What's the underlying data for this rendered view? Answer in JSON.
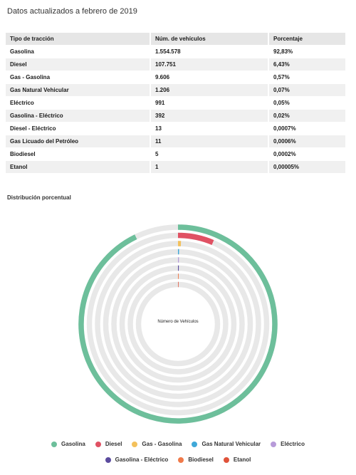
{
  "heading": "Datos actualizados a febrero de 2019",
  "table": {
    "headers": [
      "Tipo de tracción",
      "Núm. de vehículos",
      "Porcentaje"
    ],
    "rows": [
      [
        "Gasolina",
        "1.554.578",
        "92,83%"
      ],
      [
        "Diesel",
        "107.751",
        "6,43%"
      ],
      [
        "Gas - Gasolina",
        "9.606",
        "0,57%"
      ],
      [
        "Gas Natural Vehicular",
        "1.206",
        "0,07%"
      ],
      [
        "Eléctrico",
        "991",
        "0,05%"
      ],
      [
        "Gasolina - Eléctrico",
        "392",
        "0,02%"
      ],
      [
        "Diesel - Eléctrico",
        "13",
        "0,0007%"
      ],
      [
        "Gas Licuado del Petróleo",
        "11",
        "0,0006%"
      ],
      [
        "Biodiesel",
        "5",
        "0,0002%"
      ],
      [
        "Etanol",
        "1",
        "0,00005%"
      ]
    ]
  },
  "chart_subtitle": "Distribución porcentual",
  "chart_data": {
    "type": "radial-bar",
    "title": "Distribución porcentual",
    "center_label": "Número de Vehículos",
    "scale_max_percent": 100,
    "series": [
      {
        "name": "Gasolina",
        "value": 1554578,
        "percent": 92.83,
        "color": "#6dbf9b"
      },
      {
        "name": "Diesel",
        "value": 107751,
        "percent": 6.43,
        "color": "#e05163"
      },
      {
        "name": "Gas - Gasolina",
        "value": 9606,
        "percent": 0.57,
        "color": "#f3c15c"
      },
      {
        "name": "Gas Natural Vehicular",
        "value": 1206,
        "percent": 0.07,
        "color": "#3fa8d8"
      },
      {
        "name": "Eléctrico",
        "value": 991,
        "percent": 0.05,
        "color": "#b79bd9"
      },
      {
        "name": "Gasolina - Eléctrico",
        "value": 392,
        "percent": 0.02,
        "color": "#5b4b9e"
      },
      {
        "name": "Biodiesel",
        "value": 5,
        "percent": 0.0002,
        "color": "#f07a4a"
      },
      {
        "name": "Etanol",
        "value": 1,
        "percent": 5e-05,
        "color": "#e0533a"
      }
    ],
    "track_color": "#e8e8e8"
  },
  "legend_row1": [
    {
      "label": "Gasolina",
      "color": "#6dbf9b"
    },
    {
      "label": "Diesel",
      "color": "#e05163"
    },
    {
      "label": "Gas - Gasolina",
      "color": "#f3c15c"
    },
    {
      "label": "Gas Natural Vehicular",
      "color": "#3fa8d8"
    },
    {
      "label": "Eléctrico",
      "color": "#b79bd9"
    }
  ],
  "legend_row2": [
    {
      "label": "Gasolina - Eléctrico",
      "color": "#5b4b9e"
    },
    {
      "label": "Biodiesel",
      "color": "#f07a4a"
    },
    {
      "label": "Etanol",
      "color": "#e0533a"
    }
  ]
}
